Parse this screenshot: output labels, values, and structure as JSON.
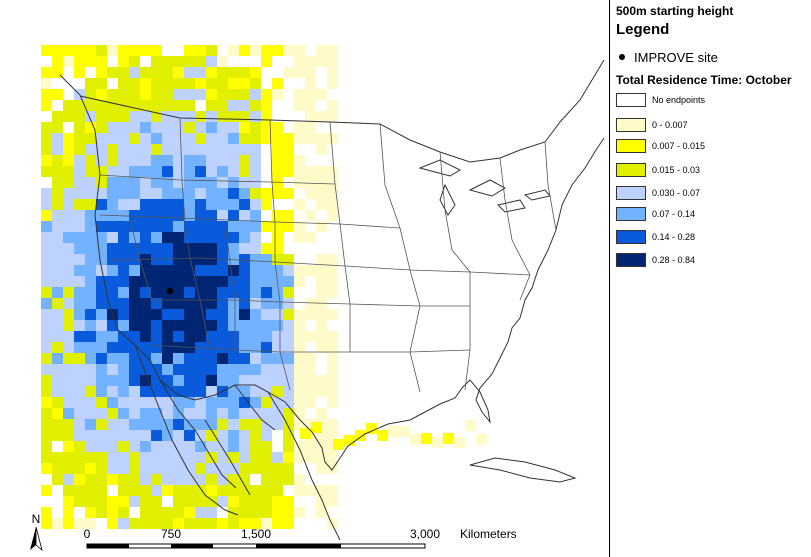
{
  "legend": {
    "height_label": "500m starting height",
    "title": "Legend",
    "site_marker_label": "IMPROVE site",
    "residence_title": "Total Residence Time: October",
    "classes": [
      {
        "label": "No endpoints",
        "color": "#ffffff"
      },
      {
        "label": "0 - 0.007",
        "color": "#fffbc8"
      },
      {
        "label": "0.007 - 0.015",
        "color": "#ffff00"
      },
      {
        "label": "0.015 - 0.03",
        "color": "#e1f000"
      },
      {
        "label": "0.030 - 0.07",
        "color": "#bed2ff"
      },
      {
        "label": "0.07 - 0.14",
        "color": "#73b2ff"
      },
      {
        "label": "0.14 - 0.28",
        "color": "#0a5adc"
      },
      {
        "label": "0.28 - 0.84",
        "color": "#002673"
      }
    ]
  },
  "scale_bar": {
    "ticks": [
      "0",
      "750",
      "1,500",
      "3,000"
    ],
    "unit": "Kilometers"
  },
  "north_arrow": {
    "letter": "N"
  }
}
